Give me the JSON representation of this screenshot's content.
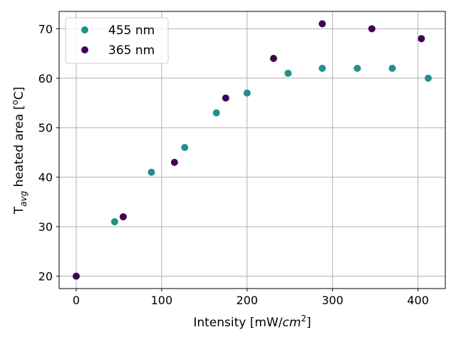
{
  "chart_data": {
    "type": "scatter",
    "title": "",
    "xlabel": "Intensity [mW/cm²]",
    "xlabel_parts": {
      "main": "Intensity [mW/",
      "italic": "cm",
      "sup": "2",
      "close": "]"
    },
    "ylabel": "T_avg heated area [°C]",
    "ylabel_parts": {
      "main": "T",
      "sub": "avg",
      "rest": " heated area [",
      "sup": "o",
      "close": "C]"
    },
    "xlim": [
      -20,
      432
    ],
    "ylim": [
      17.5,
      73.5
    ],
    "xticks": [
      0,
      100,
      200,
      300,
      400
    ],
    "yticks": [
      20,
      30,
      40,
      50,
      60,
      70
    ],
    "grid": true,
    "legend_position": "top-left",
    "series": [
      {
        "name": "455 nm",
        "color": "#21918c",
        "points": [
          {
            "x": 45,
            "y": 31
          },
          {
            "x": 88,
            "y": 41
          },
          {
            "x": 127,
            "y": 46
          },
          {
            "x": 164,
            "y": 53
          },
          {
            "x": 200,
            "y": 57
          },
          {
            "x": 248,
            "y": 61
          },
          {
            "x": 288,
            "y": 62
          },
          {
            "x": 329,
            "y": 62
          },
          {
            "x": 370,
            "y": 62
          },
          {
            "x": 412,
            "y": 60
          }
        ]
      },
      {
        "name": "365 nm",
        "color": "#440154",
        "points": [
          {
            "x": 0,
            "y": 20
          },
          {
            "x": 55,
            "y": 32
          },
          {
            "x": 115,
            "y": 43
          },
          {
            "x": 175,
            "y": 56
          },
          {
            "x": 231,
            "y": 64
          },
          {
            "x": 288,
            "y": 71
          },
          {
            "x": 346,
            "y": 70
          },
          {
            "x": 404,
            "y": 68
          }
        ]
      }
    ]
  }
}
